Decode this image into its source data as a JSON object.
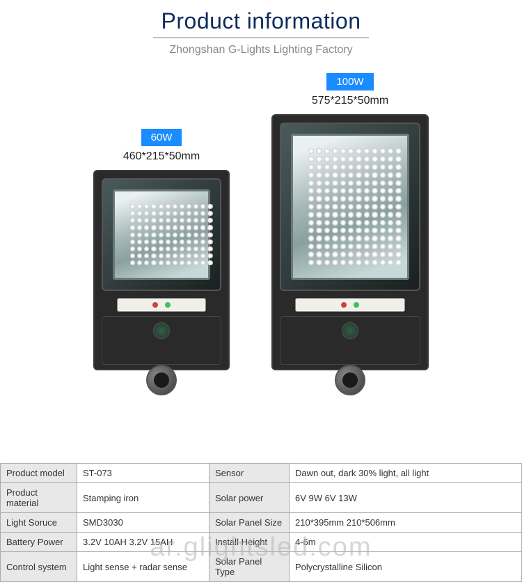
{
  "header": {
    "title": "Product information",
    "subtitle": "Zhongshan G-Lights Lighting Factory"
  },
  "products": [
    {
      "badge": "60W",
      "dims": "460*215*50mm",
      "badge_bg": "#1a8cff",
      "led_rows": 9,
      "led_cols": 12,
      "size": "small",
      "body_w": 196,
      "body_h": 340
    },
    {
      "badge": "100W",
      "dims": "575*215*50mm",
      "badge_bg": "#1a8cff",
      "led_rows": 15,
      "led_cols": 12,
      "size": "large",
      "body_w": 226,
      "body_h": 420
    }
  ],
  "specs": {
    "rows": [
      {
        "l1": "Product model",
        "v1": "ST-073",
        "l2": "Sensor",
        "v2": "Dawn out, dark 30% light, all light"
      },
      {
        "l1": "Product material",
        "v1": "Stamping iron",
        "l2": "Solar power",
        "v2": "6V 9W  6V 13W"
      },
      {
        "l1": "Light Soruce",
        "v1": "SMD3030",
        "l2": "Solar Panel Size",
        "v2": "210*395mm  210*506mm"
      },
      {
        "l1": "Battery Power",
        "v1": "3.2V 10AH   3.2V 15AH",
        "l2": "Install Height",
        "v2": "4-6m"
      },
      {
        "l1": "Control system",
        "v1": "Light sense + radar sense",
        "l2": "Solar Panel Type",
        "v2": "Polycrystalline Silicon"
      }
    ]
  },
  "watermark": "ar.glightsled.com",
  "colors": {
    "title": "#0d2b5e",
    "badge": "#1a8cff",
    "border": "#aaaaaa",
    "label_bg": "#e8e8e8"
  }
}
